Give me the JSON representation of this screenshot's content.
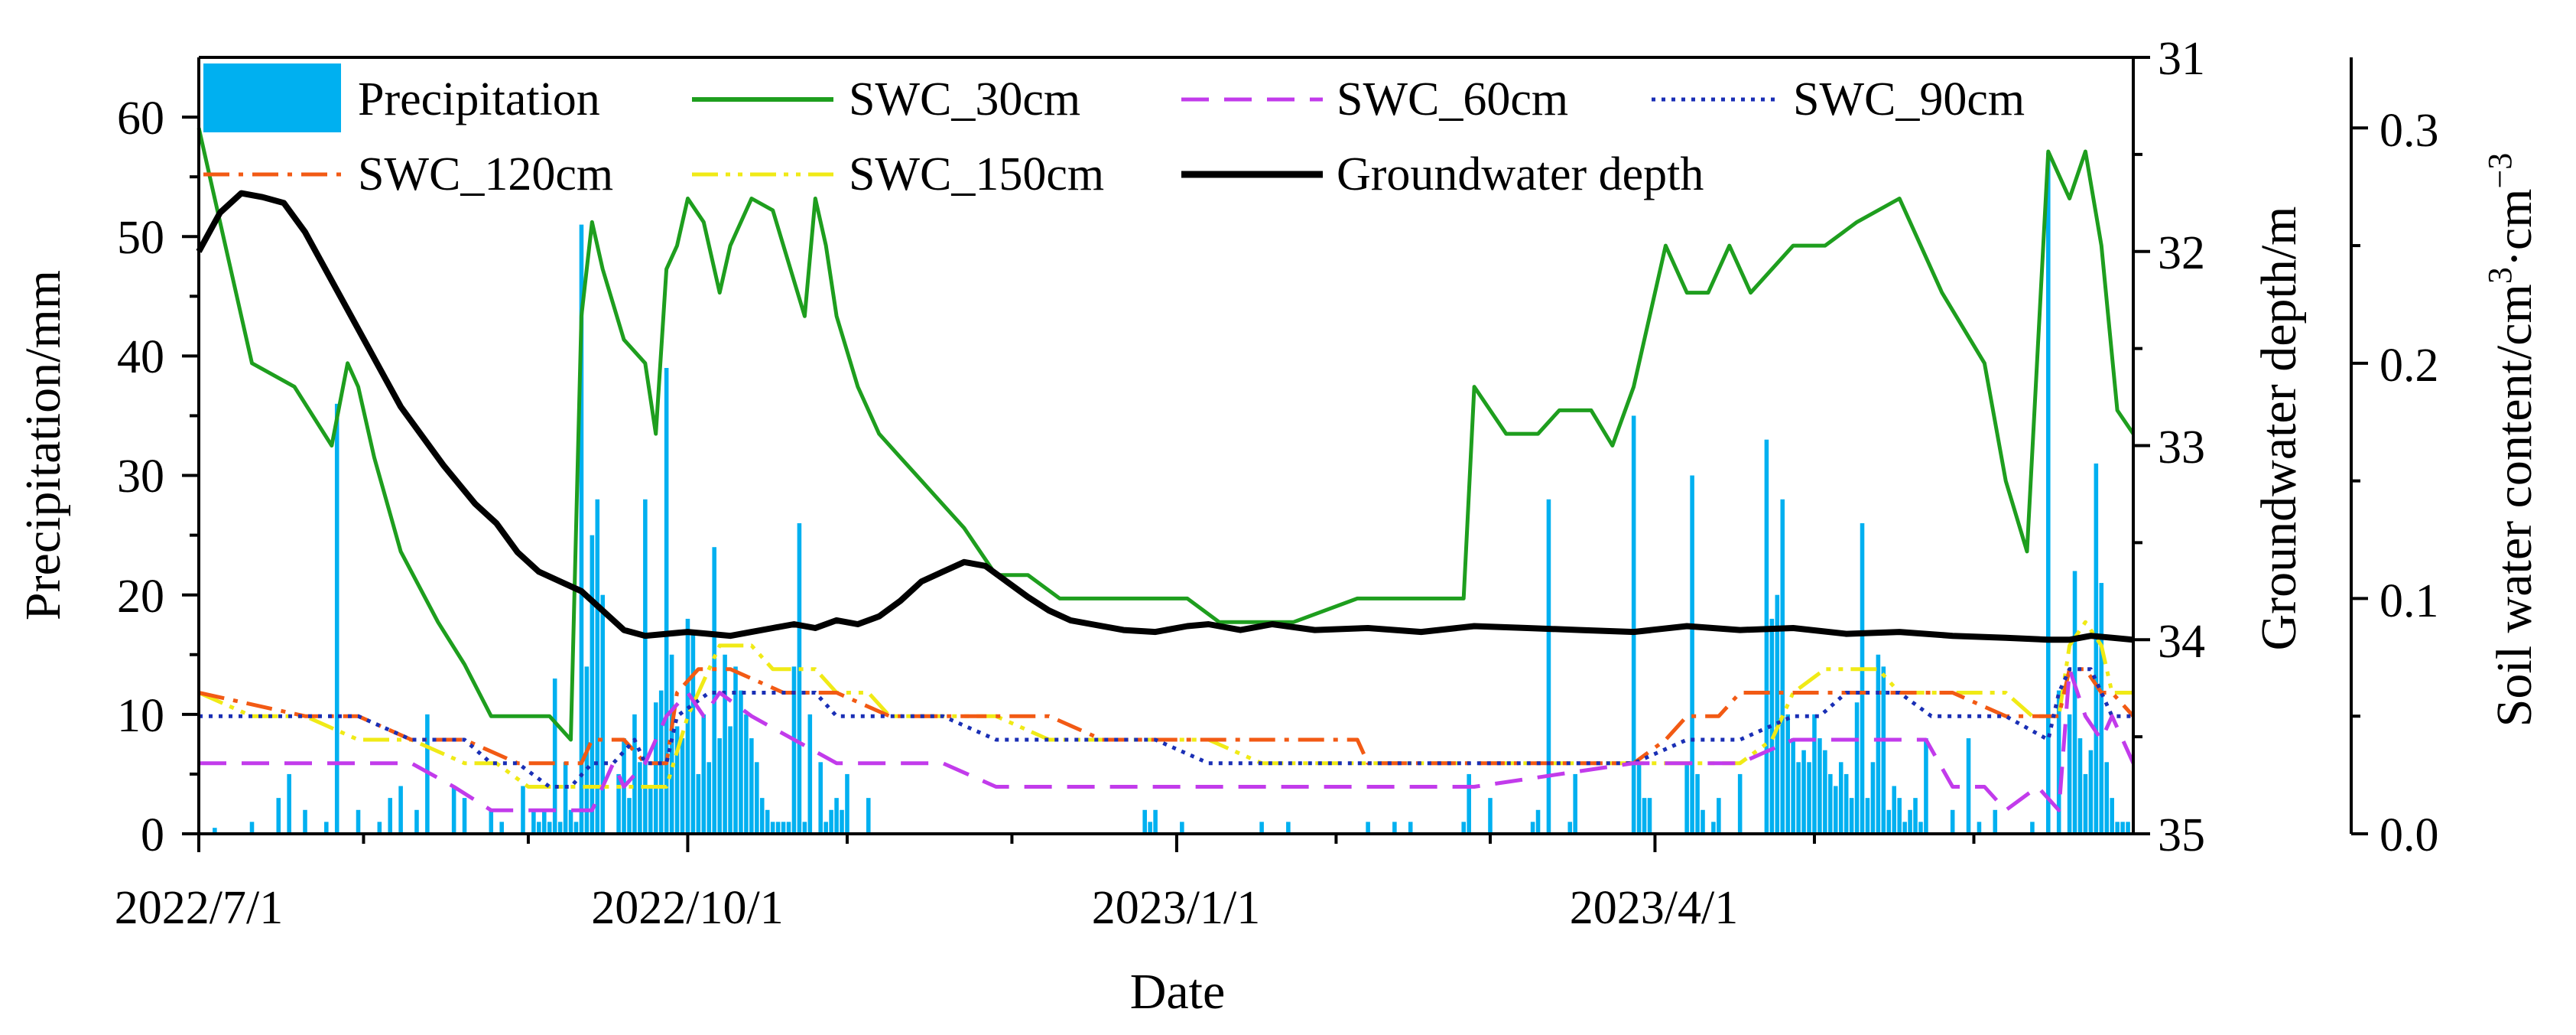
{
  "chart_data": {
    "type": "combo",
    "xlabel": "Date",
    "x_tick_labels": [
      "2022/7/1",
      "2022/10/1",
      "2023/1/1",
      "2023/4/1"
    ],
    "x_tick_days": [
      0,
      92,
      184,
      274
    ],
    "x_range_days": [
      0,
      364
    ],
    "axes": {
      "left": {
        "label": "Precipitation/mm",
        "range": [
          0,
          65
        ],
        "ticks": [
          0,
          10,
          20,
          30,
          40,
          50,
          60
        ],
        "tick_labels": [
          "0",
          "10",
          "20",
          "30",
          "40",
          "50",
          "60"
        ]
      },
      "right1": {
        "label": "Groundwater depth/m",
        "range": [
          31,
          35
        ],
        "inverted": true,
        "ticks": [
          31,
          32,
          33,
          34,
          35
        ],
        "tick_labels": [
          "31",
          "32",
          "33",
          "34",
          "35"
        ]
      },
      "right2": {
        "label_main": "Soil water content/cm",
        "label_sup1": "3",
        "label_mid": "·cm",
        "label_sup2": "−3",
        "range": [
          0,
          0.33
        ],
        "ticks": [
          0,
          0.1,
          0.2,
          0.3
        ],
        "tick_labels": [
          "0.0",
          "0.1",
          "0.2",
          "0.3"
        ]
      }
    },
    "legend": [
      {
        "name": "Precipitation",
        "color": "#00B0F0",
        "kind": "bar"
      },
      {
        "name": "SWC_30cm",
        "color": "#1E9E1E",
        "kind": "solid"
      },
      {
        "name": "SWC_60cm",
        "color": "#C23BEB",
        "kind": "dash"
      },
      {
        "name": "SWC_90cm",
        "color": "#1A2FB5",
        "kind": "dot"
      },
      {
        "name": "SWC_120cm",
        "color": "#F25A14",
        "kind": "dashdot"
      },
      {
        "name": "SWC_150cm",
        "color": "#F0EA16",
        "kind": "dashdotdot"
      },
      {
        "name": "Groundwater depth",
        "color": "#000000",
        "kind": "thick"
      }
    ],
    "precipitation": {
      "name": "Precipitation",
      "days": [
        3,
        10,
        15,
        17,
        20,
        24,
        26,
        30,
        34,
        36,
        38,
        41,
        43,
        48,
        50,
        55,
        57,
        61,
        63,
        64,
        65,
        66,
        67,
        68,
        69,
        70,
        71,
        72,
        73,
        74,
        75,
        76,
        79,
        80,
        81,
        82,
        83,
        84,
        85,
        86,
        87,
        88,
        89,
        90,
        91,
        92,
        93,
        94,
        95,
        96,
        97,
        98,
        99,
        100,
        101,
        102,
        103,
        104,
        105,
        106,
        107,
        108,
        109,
        110,
        111,
        112,
        113,
        114,
        115,
        117,
        118,
        119,
        120,
        121,
        122,
        126,
        178,
        179,
        180,
        185,
        200,
        205,
        220,
        225,
        228,
        238,
        239,
        243,
        251,
        252,
        254,
        258,
        259,
        270,
        271,
        272,
        273,
        280,
        281,
        282,
        283,
        285,
        286,
        290,
        295,
        296,
        297,
        298,
        299,
        300,
        301,
        302,
        303,
        304,
        305,
        306,
        307,
        308,
        309,
        310,
        311,
        312,
        313,
        314,
        315,
        316,
        317,
        318,
        319,
        320,
        321,
        322,
        323,
        324,
        325,
        330,
        333,
        335,
        338,
        345,
        348,
        350,
        352,
        353,
        354,
        355,
        356,
        357,
        358,
        359,
        360,
        361,
        362,
        363
      ],
      "values": [
        0.5,
        1,
        3,
        5,
        2,
        1,
        36,
        2,
        1,
        3,
        4,
        2,
        10,
        4,
        3,
        2,
        1,
        4,
        2,
        1,
        2,
        1,
        13,
        1,
        6,
        2,
        1,
        51,
        14,
        25,
        28,
        20,
        5,
        8,
        3,
        10,
        6,
        28,
        4,
        11,
        12,
        39,
        15,
        9,
        8,
        18,
        17,
        5,
        10,
        6,
        24,
        8,
        15,
        9,
        14,
        12,
        10,
        8,
        6,
        3,
        2,
        1,
        1,
        1,
        1,
        14,
        26,
        1,
        10,
        6,
        1,
        2,
        3,
        2,
        5,
        3,
        2,
        1,
        2,
        1,
        1,
        1,
        1,
        1,
        1,
        1,
        5,
        3,
        1,
        2,
        28,
        1,
        5,
        35,
        6,
        3,
        3,
        6,
        30,
        5,
        2,
        1,
        3,
        5,
        33,
        18,
        20,
        28,
        10,
        8,
        6,
        7,
        6,
        10,
        8,
        7,
        5,
        4,
        6,
        5,
        3,
        11,
        26,
        3,
        6,
        15,
        14,
        2,
        4,
        3,
        1,
        2,
        3,
        1,
        8,
        2,
        8,
        1,
        2,
        1,
        57,
        12,
        10,
        22,
        8,
        5,
        7,
        31,
        21,
        6,
        3,
        1,
        1,
        1
      ]
    },
    "swc": [
      {
        "name": "SWC_30cm",
        "days": [
          0,
          10,
          18,
          25,
          28,
          30,
          33,
          38,
          45,
          50,
          55,
          60,
          66,
          70,
          72,
          74,
          76,
          80,
          84,
          86,
          88,
          90,
          92,
          95,
          98,
          100,
          104,
          108,
          110,
          114,
          116,
          118,
          120,
          124,
          128,
          132,
          136,
          140,
          144,
          150,
          156,
          162,
          168,
          174,
          180,
          186,
          192,
          206,
          218,
          238,
          240,
          246,
          252,
          256,
          262,
          266,
          270,
          276,
          280,
          284,
          288,
          292,
          296,
          300,
          306,
          312,
          320,
          328,
          336,
          340,
          344,
          348,
          350,
          352,
          355,
          358,
          361,
          364
        ],
        "values": [
          0.3,
          0.2,
          0.19,
          0.165,
          0.2,
          0.19,
          0.16,
          0.12,
          0.09,
          0.072,
          0.05,
          0.05,
          0.05,
          0.04,
          0.22,
          0.26,
          0.24,
          0.21,
          0.2,
          0.17,
          0.24,
          0.25,
          0.27,
          0.26,
          0.23,
          0.25,
          0.27,
          0.265,
          0.25,
          0.22,
          0.27,
          0.25,
          0.22,
          0.19,
          0.17,
          0.16,
          0.15,
          0.14,
          0.13,
          0.11,
          0.11,
          0.1,
          0.1,
          0.1,
          0.1,
          0.1,
          0.09,
          0.09,
          0.1,
          0.1,
          0.19,
          0.17,
          0.17,
          0.18,
          0.18,
          0.165,
          0.19,
          0.25,
          0.23,
          0.23,
          0.25,
          0.23,
          0.24,
          0.25,
          0.25,
          0.26,
          0.27,
          0.23,
          0.2,
          0.15,
          0.12,
          0.29,
          0.28,
          0.27,
          0.29,
          0.25,
          0.18,
          0.17
        ]
      },
      {
        "name": "SWC_60cm",
        "days": [
          0,
          40,
          48,
          55,
          62,
          74,
          76,
          78,
          80,
          84,
          86,
          88,
          92,
          95,
          98,
          104,
          120,
          124,
          128,
          140,
          150,
          180,
          210,
          240,
          270,
          290,
          300,
          310,
          316,
          325,
          330,
          336,
          340,
          346,
          350,
          352,
          355,
          358,
          360,
          364
        ],
        "values": [
          0.03,
          0.03,
          0.02,
          0.01,
          0.01,
          0.01,
          0.02,
          0.03,
          0.02,
          0.03,
          0.04,
          0.05,
          0.06,
          0.05,
          0.06,
          0.05,
          0.03,
          0.03,
          0.03,
          0.03,
          0.02,
          0.02,
          0.02,
          0.02,
          0.03,
          0.03,
          0.04,
          0.04,
          0.04,
          0.04,
          0.02,
          0.02,
          0.01,
          0.02,
          0.01,
          0.07,
          0.05,
          0.04,
          0.05,
          0.03
        ]
      },
      {
        "name": "SWC_90cm",
        "days": [
          0,
          30,
          40,
          50,
          55,
          60,
          66,
          70,
          74,
          78,
          82,
          84,
          88,
          90,
          96,
          100,
          104,
          112,
          116,
          120,
          126,
          134,
          140,
          150,
          160,
          180,
          190,
          200,
          220,
          240,
          260,
          270,
          280,
          285,
          290,
          300,
          305,
          310,
          320,
          326,
          330,
          336,
          340,
          348,
          350,
          352,
          356,
          360,
          364
        ],
        "values": [
          0.05,
          0.05,
          0.04,
          0.04,
          0.03,
          0.03,
          0.02,
          0.02,
          0.03,
          0.03,
          0.04,
          0.03,
          0.03,
          0.05,
          0.06,
          0.06,
          0.06,
          0.06,
          0.06,
          0.05,
          0.05,
          0.05,
          0.05,
          0.04,
          0.04,
          0.04,
          0.03,
          0.03,
          0.03,
          0.03,
          0.03,
          0.03,
          0.04,
          0.04,
          0.04,
          0.05,
          0.05,
          0.06,
          0.06,
          0.05,
          0.05,
          0.05,
          0.05,
          0.04,
          0.06,
          0.07,
          0.07,
          0.05,
          0.05
        ]
      },
      {
        "name": "SWC_120cm",
        "days": [
          0,
          20,
          30,
          40,
          50,
          60,
          66,
          72,
          74,
          80,
          84,
          88,
          90,
          94,
          100,
          110,
          120,
          130,
          140,
          150,
          160,
          170,
          180,
          190,
          200,
          210,
          218,
          220,
          240,
          260,
          270,
          276,
          280,
          286,
          290,
          296,
          300,
          310,
          320,
          330,
          340,
          345,
          350,
          352,
          355,
          358,
          360,
          364
        ],
        "values": [
          0.06,
          0.05,
          0.05,
          0.04,
          0.04,
          0.03,
          0.03,
          0.03,
          0.04,
          0.04,
          0.03,
          0.03,
          0.06,
          0.07,
          0.07,
          0.06,
          0.06,
          0.05,
          0.05,
          0.05,
          0.05,
          0.04,
          0.04,
          0.04,
          0.04,
          0.04,
          0.04,
          0.03,
          0.03,
          0.03,
          0.03,
          0.04,
          0.05,
          0.05,
          0.06,
          0.06,
          0.06,
          0.06,
          0.06,
          0.06,
          0.05,
          0.05,
          0.05,
          0.07,
          0.07,
          0.06,
          0.06,
          0.05
        ]
      },
      {
        "name": "SWC_150cm",
        "days": [
          0,
          10,
          20,
          30,
          40,
          50,
          56,
          62,
          66,
          70,
          80,
          84,
          88,
          92,
          96,
          98,
          104,
          108,
          110,
          116,
          120,
          126,
          130,
          140,
          150,
          160,
          170,
          180,
          190,
          200,
          220,
          240,
          260,
          270,
          280,
          290,
          296,
          300,
          306,
          310,
          316,
          320,
          330,
          340,
          345,
          350,
          352,
          355,
          358,
          360,
          364
        ],
        "values": [
          0.06,
          0.05,
          0.05,
          0.04,
          0.04,
          0.03,
          0.03,
          0.02,
          0.02,
          0.02,
          0.02,
          0.02,
          0.02,
          0.05,
          0.07,
          0.08,
          0.08,
          0.07,
          0.07,
          0.07,
          0.06,
          0.06,
          0.05,
          0.05,
          0.05,
          0.04,
          0.04,
          0.04,
          0.04,
          0.03,
          0.03,
          0.03,
          0.03,
          0.03,
          0.03,
          0.03,
          0.04,
          0.06,
          0.07,
          0.07,
          0.07,
          0.06,
          0.06,
          0.06,
          0.05,
          0.05,
          0.08,
          0.09,
          0.08,
          0.06,
          0.06
        ]
      }
    ],
    "groundwater": {
      "name": "Groundwater depth",
      "days": [
        0,
        4,
        8,
        12,
        16,
        20,
        26,
        32,
        38,
        46,
        52,
        56,
        60,
        64,
        68,
        72,
        76,
        80,
        84,
        88,
        92,
        96,
        100,
        104,
        108,
        112,
        116,
        120,
        124,
        128,
        132,
        136,
        140,
        144,
        148,
        152,
        156,
        160,
        164,
        168,
        174,
        180,
        186,
        190,
        196,
        202,
        210,
        220,
        230,
        240,
        250,
        260,
        270,
        280,
        290,
        300,
        310,
        320,
        330,
        340,
        348,
        352,
        356,
        360,
        364
      ],
      "values": [
        32.0,
        31.8,
        31.7,
        31.72,
        31.75,
        31.9,
        32.2,
        32.5,
        32.8,
        33.1,
        33.3,
        33.4,
        33.55,
        33.65,
        33.7,
        33.75,
        33.85,
        33.95,
        33.98,
        33.97,
        33.96,
        33.97,
        33.98,
        33.96,
        33.94,
        33.92,
        33.94,
        33.9,
        33.92,
        33.88,
        33.8,
        33.7,
        33.65,
        33.6,
        33.62,
        33.7,
        33.78,
        33.85,
        33.9,
        33.92,
        33.95,
        33.96,
        33.93,
        33.92,
        33.95,
        33.92,
        33.95,
        33.94,
        33.96,
        33.93,
        33.94,
        33.95,
        33.96,
        33.93,
        33.95,
        33.94,
        33.97,
        33.96,
        33.98,
        33.99,
        34.0,
        34.0,
        33.98,
        33.99,
        34.0
      ]
    }
  }
}
